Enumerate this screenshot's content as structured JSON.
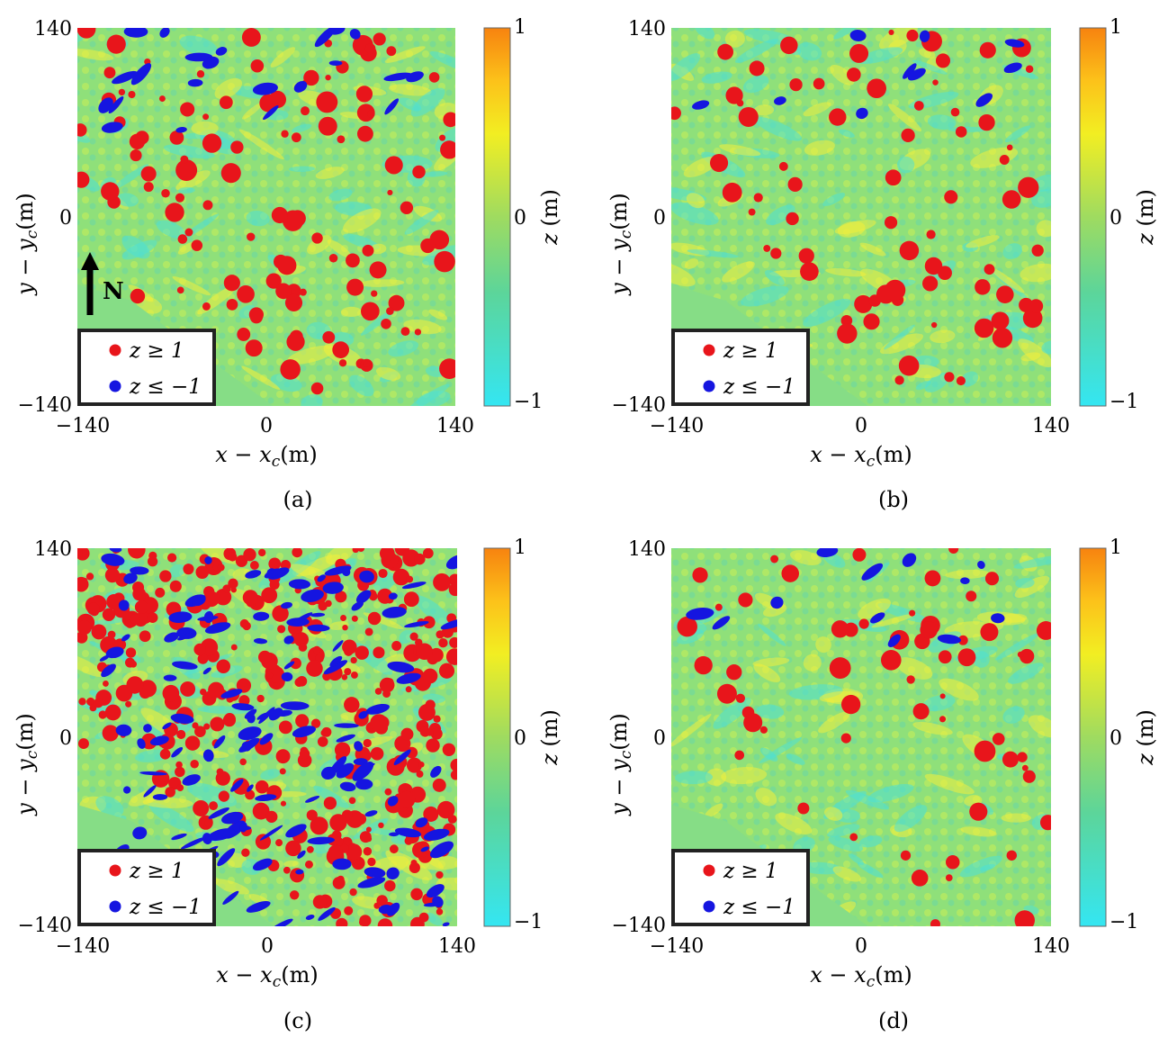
{
  "figure": {
    "x_label": "x − x",
    "x_label_sub": "c",
    "x_label_unit": "(m)",
    "y_label": "y − y",
    "y_label_sub": "c",
    "y_label_unit": "(m)",
    "north_label": "N"
  },
  "chart_data": [
    {
      "type": "heatmap",
      "panel": "a",
      "caption": "(a)",
      "title": "",
      "xlabel": "x − x_c (m)",
      "ylabel": "y − y_c (m)",
      "xlim": [
        -140,
        140
      ],
      "ylim": [
        -140,
        140
      ],
      "x_ticks": [
        "−140",
        "0",
        "140"
      ],
      "y_ticks": [
        "140",
        "0",
        "−140"
      ],
      "colorbar": {
        "label": "z (m)",
        "range": [
          -1,
          1
        ],
        "ticks": [
          "1",
          "0",
          "−1"
        ]
      },
      "legend": [
        {
          "label": "z ≥ 1",
          "color": "#e8151b"
        },
        {
          "label": "z ≤ −1",
          "color": "#1515e0"
        }
      ],
      "has_north_arrow": true,
      "density": {
        "red": 120,
        "blue": 22
      }
    },
    {
      "type": "heatmap",
      "panel": "b",
      "caption": "(b)",
      "title": "",
      "xlabel": "x − x_c (m)",
      "ylabel": "y − y_c (m)",
      "xlim": [
        -140,
        140
      ],
      "ylim": [
        -140,
        140
      ],
      "x_ticks": [
        "−140",
        "0",
        "140"
      ],
      "y_ticks": [
        "140",
        "0",
        "−140"
      ],
      "colorbar": {
        "label": "z (m)",
        "range": [
          -1,
          1
        ],
        "ticks": [
          "1",
          "0",
          "−1"
        ]
      },
      "legend": [
        {
          "label": "z ≥ 1",
          "color": "#e8151b"
        },
        {
          "label": "z ≤ −1",
          "color": "#1515e0"
        }
      ],
      "has_north_arrow": false,
      "density": {
        "red": 75,
        "blue": 10
      }
    },
    {
      "type": "heatmap",
      "panel": "c",
      "caption": "(c)",
      "title": "",
      "xlabel": "x − x_c (m)",
      "ylabel": "y − y_c (m)",
      "xlim": [
        -140,
        140
      ],
      "ylim": [
        -140,
        140
      ],
      "x_ticks": [
        "−140",
        "0",
        "140"
      ],
      "y_ticks": [
        "140",
        "0",
        "−140"
      ],
      "colorbar": {
        "label": "z (m)",
        "range": [
          -1,
          1
        ],
        "ticks": [
          "1",
          "0",
          "−1"
        ]
      },
      "legend": [
        {
          "label": "z ≥ 1",
          "color": "#e8151b"
        },
        {
          "label": "z ≤ −1",
          "color": "#1515e0"
        }
      ],
      "has_north_arrow": false,
      "density": {
        "red": 420,
        "blue": 160
      }
    },
    {
      "type": "heatmap",
      "panel": "d",
      "caption": "(d)",
      "title": "",
      "xlabel": "x − x_c (m)",
      "ylabel": "y − y_c (m)",
      "xlim": [
        -140,
        140
      ],
      "ylim": [
        -140,
        140
      ],
      "x_ticks": [
        "−140",
        "0",
        "140"
      ],
      "y_ticks": [
        "140",
        "0",
        "−140"
      ],
      "colorbar": {
        "label": "z (m)",
        "range": [
          -1,
          1
        ],
        "ticks": [
          "1",
          "0",
          "−1"
        ]
      },
      "legend": [
        {
          "label": "z ≥ 1",
          "color": "#e8151b"
        },
        {
          "label": "z ≤ −1",
          "color": "#1515e0"
        }
      ],
      "has_north_arrow": false,
      "density": {
        "red": 60,
        "blue": 12
      }
    }
  ]
}
